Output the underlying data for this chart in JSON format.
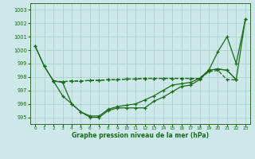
{
  "background_color": "#cde8e8",
  "grid_color": "#aacccc",
  "line_color": "#1a6b1a",
  "xlabel": "Graphe pression niveau de la mer (hPa)",
  "ylim": [
    994.5,
    1003.5
  ],
  "xlim": [
    -0.5,
    23.5
  ],
  "yticks": [
    995,
    996,
    997,
    998,
    999,
    1000,
    1001,
    1002,
    1003
  ],
  "xticks": [
    0,
    1,
    2,
    3,
    4,
    5,
    6,
    7,
    8,
    9,
    10,
    11,
    12,
    13,
    14,
    15,
    16,
    17,
    18,
    19,
    20,
    21,
    22,
    23
  ],
  "line1_x": [
    0,
    1,
    2,
    3,
    4,
    5,
    6,
    7,
    8,
    9,
    10,
    11,
    12,
    13,
    14,
    15,
    16,
    17,
    18,
    19,
    20,
    21,
    22,
    23
  ],
  "line1_y": [
    1000.3,
    998.8,
    997.7,
    996.6,
    996.0,
    995.4,
    995.0,
    995.0,
    995.5,
    995.7,
    995.7,
    995.7,
    995.7,
    996.2,
    996.5,
    996.9,
    997.3,
    997.4,
    997.8,
    998.5,
    999.9,
    1001.0,
    999.0,
    1002.3
  ],
  "line2_x": [
    2,
    3,
    4,
    5,
    6,
    7,
    8,
    9,
    10,
    11,
    12,
    13,
    14,
    15,
    16,
    17,
    18,
    19,
    20,
    21,
    22
  ],
  "line2_y": [
    997.7,
    997.65,
    997.7,
    997.7,
    997.75,
    997.75,
    997.8,
    997.8,
    997.85,
    997.85,
    997.9,
    997.9,
    997.9,
    997.9,
    997.9,
    997.9,
    997.85,
    998.4,
    998.5,
    997.8,
    997.8
  ],
  "line3_x": [
    2,
    3,
    4,
    5,
    6,
    7,
    8,
    9,
    10,
    11,
    12,
    13,
    14,
    15,
    16,
    17,
    18,
    19,
    20,
    21,
    22
  ],
  "line3_y": [
    997.7,
    997.65,
    997.7,
    997.7,
    997.75,
    997.75,
    997.8,
    997.8,
    997.85,
    997.85,
    997.9,
    997.9,
    997.9,
    997.9,
    997.9,
    997.9,
    997.9,
    998.5,
    998.6,
    998.5,
    997.8
  ],
  "line4_x": [
    0,
    1,
    2,
    3,
    4,
    5,
    6,
    7,
    8,
    9,
    10,
    11,
    12,
    13,
    14,
    15,
    16,
    17,
    18,
    19,
    20,
    21,
    22,
    23
  ],
  "line4_y": [
    1000.3,
    998.8,
    997.7,
    997.6,
    996.0,
    995.4,
    995.1,
    995.1,
    995.6,
    995.8,
    995.9,
    996.0,
    996.3,
    996.6,
    997.0,
    997.4,
    997.5,
    997.6,
    997.9,
    998.5,
    998.6,
    998.5,
    997.8,
    1002.3
  ]
}
